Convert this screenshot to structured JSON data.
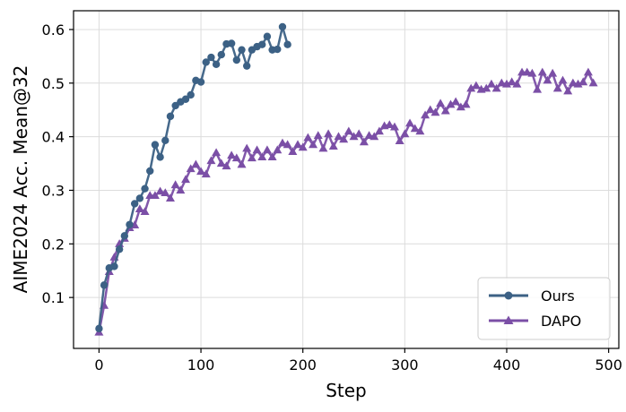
{
  "chart_data": {
    "type": "line",
    "title": "",
    "xlabel": "Step",
    "ylabel": "AIME2024 Acc. Mean@32",
    "xlim": [
      -25,
      510
    ],
    "ylim": [
      0.005,
      0.635
    ],
    "xticks": [
      0,
      100,
      200,
      300,
      400,
      500
    ],
    "yticks": [
      0.1,
      0.2,
      0.3,
      0.4,
      0.5,
      0.6
    ],
    "xtick_labels": [
      "0",
      "100",
      "200",
      "300",
      "400",
      "500"
    ],
    "ytick_labels": [
      "0.1",
      "0.2",
      "0.3",
      "0.4",
      "0.5",
      "0.6"
    ],
    "grid": true,
    "legend_position": "bottom-right",
    "series": [
      {
        "name": "Ours",
        "color": "#3c6185",
        "marker": "circle",
        "x": [
          0,
          5,
          10,
          15,
          20,
          25,
          30,
          35,
          40,
          45,
          50,
          55,
          60,
          65,
          70,
          75,
          80,
          85,
          90,
          95,
          100,
          105,
          110,
          115,
          120,
          125,
          130,
          135,
          140,
          145,
          150,
          155,
          160,
          165,
          170,
          175,
          180,
          185
        ],
        "y": [
          0.042,
          0.123,
          0.155,
          0.158,
          0.19,
          0.215,
          0.236,
          0.275,
          0.285,
          0.303,
          0.336,
          0.385,
          0.362,
          0.393,
          0.438,
          0.458,
          0.465,
          0.47,
          0.478,
          0.505,
          0.502,
          0.539,
          0.548,
          0.535,
          0.553,
          0.573,
          0.574,
          0.543,
          0.562,
          0.532,
          0.562,
          0.568,
          0.572,
          0.587,
          0.562,
          0.563,
          0.605,
          0.572
        ]
      },
      {
        "name": "DAPO",
        "color": "#7b4fa6",
        "marker": "triangle",
        "x": [
          0,
          5,
          10,
          15,
          20,
          25,
          30,
          35,
          40,
          45,
          50,
          55,
          60,
          65,
          70,
          75,
          80,
          85,
          90,
          95,
          100,
          105,
          110,
          115,
          120,
          125,
          130,
          135,
          140,
          145,
          150,
          155,
          160,
          165,
          170,
          175,
          180,
          185,
          190,
          195,
          200,
          205,
          210,
          215,
          220,
          225,
          230,
          235,
          240,
          245,
          250,
          255,
          260,
          265,
          270,
          275,
          280,
          285,
          290,
          295,
          300,
          305,
          310,
          315,
          320,
          325,
          330,
          335,
          340,
          345,
          350,
          355,
          360,
          365,
          370,
          375,
          380,
          385,
          390,
          395,
          400,
          405,
          410,
          415,
          420,
          425,
          430,
          435,
          440,
          445,
          450,
          455,
          460,
          465,
          470,
          475,
          480,
          485
        ],
        "y": [
          0.035,
          0.085,
          0.148,
          0.175,
          0.2,
          0.21,
          0.23,
          0.235,
          0.265,
          0.26,
          0.29,
          0.29,
          0.298,
          0.295,
          0.285,
          0.31,
          0.3,
          0.32,
          0.34,
          0.348,
          0.335,
          0.33,
          0.355,
          0.37,
          0.35,
          0.345,
          0.365,
          0.36,
          0.348,
          0.378,
          0.36,
          0.375,
          0.362,
          0.375,
          0.362,
          0.375,
          0.388,
          0.385,
          0.372,
          0.385,
          0.38,
          0.398,
          0.385,
          0.402,
          0.378,
          0.405,
          0.382,
          0.4,
          0.395,
          0.41,
          0.4,
          0.405,
          0.39,
          0.402,
          0.4,
          0.41,
          0.42,
          0.422,
          0.418,
          0.392,
          0.405,
          0.425,
          0.415,
          0.41,
          0.44,
          0.45,
          0.445,
          0.462,
          0.448,
          0.46,
          0.465,
          0.455,
          0.46,
          0.49,
          0.495,
          0.488,
          0.49,
          0.498,
          0.49,
          0.5,
          0.498,
          0.502,
          0.498,
          0.52,
          0.52,
          0.518,
          0.488,
          0.52,
          0.505,
          0.518,
          0.49,
          0.505,
          0.485,
          0.5,
          0.498,
          0.502,
          0.52,
          0.5
        ]
      }
    ]
  }
}
